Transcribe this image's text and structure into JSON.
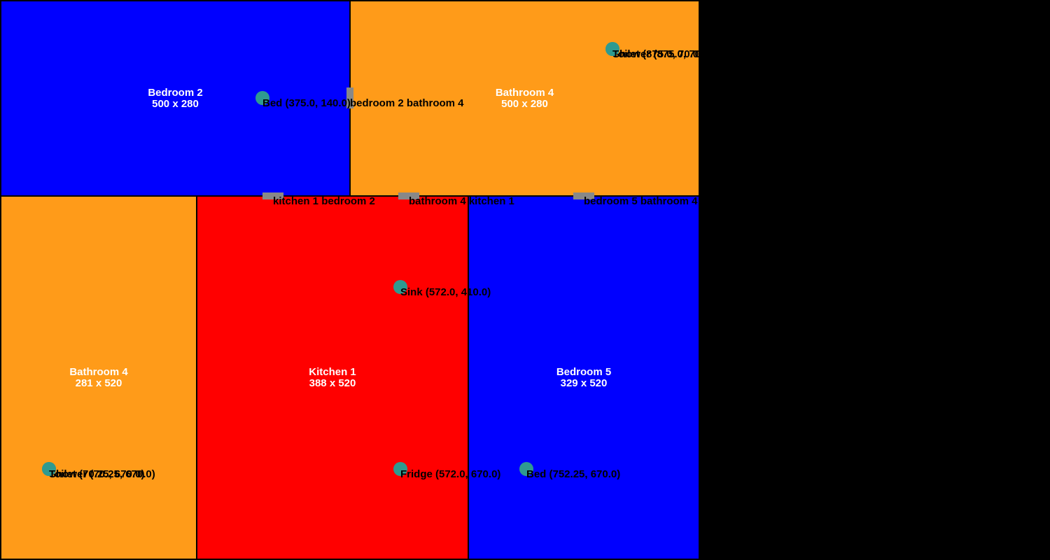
{
  "colors": {
    "background": "#000000",
    "bedroom": "#0000ff",
    "bathroom": "#ff9b19",
    "kitchen": "#ff0000",
    "door": "#888888",
    "fixture": "#2f9a90",
    "room_text": "#ffffff",
    "label_text": "#000000"
  },
  "rooms": [
    {
      "name": "Bedroom 2",
      "size": "500 x 280",
      "type": "bedroom"
    },
    {
      "name": "Bathroom 4",
      "size": "500 x 280",
      "type": "bathroom"
    },
    {
      "name": "Bathroom 4",
      "size": "281 x 520",
      "type": "bathroom"
    },
    {
      "name": "Kitchen 1",
      "size": "388 x 520",
      "type": "kitchen"
    },
    {
      "name": "Bedroom 5",
      "size": "329 x 520",
      "type": "bedroom"
    }
  ],
  "doors": [
    {
      "label": "bedroom 2 bathroom 4"
    },
    {
      "label": "kitchen 1 bedroom 2"
    },
    {
      "label": "bathroom 4 kitchen 1"
    },
    {
      "label": "bedroom 5 bathroom 4"
    }
  ],
  "fixtures": [
    {
      "label": "Bed (375.0, 140.0)"
    },
    {
      "label": "Shower (875.0, 70.0)"
    },
    {
      "label": "Toilet (875.0, 70.0)"
    },
    {
      "label": "Sink (572.0, 410.0)"
    },
    {
      "label": "Fridge (572.0, 670.0)"
    },
    {
      "label": "Bed (752.25, 670.0)"
    },
    {
      "label": "Shower (70.25, 670.0)"
    },
    {
      "label": "Toilet (70.25, 670.0)"
    }
  ]
}
